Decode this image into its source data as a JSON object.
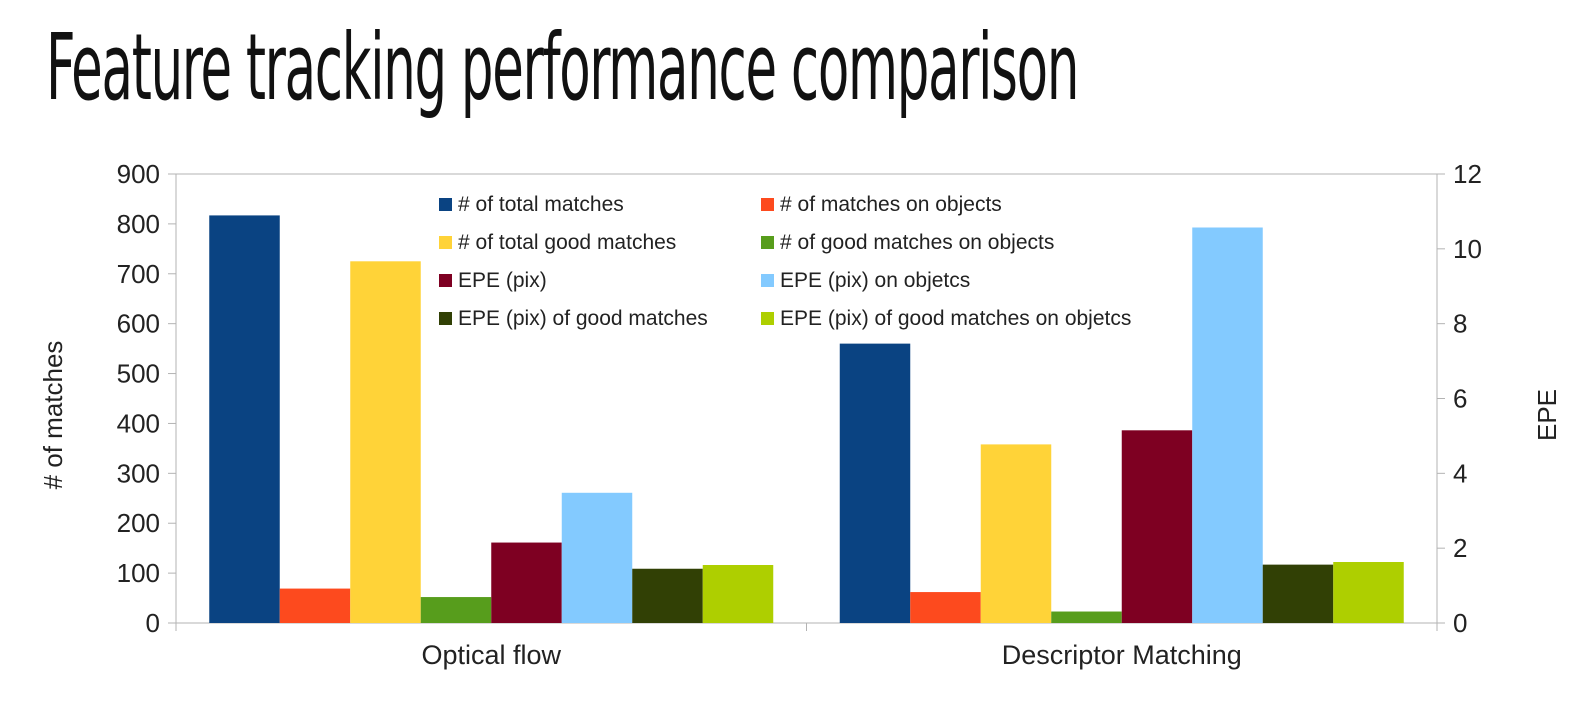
{
  "slide_title": "Feature tracking performance comparison",
  "chart_data": {
    "type": "bar",
    "categories": [
      "Optical flow",
      "Descriptor Matching"
    ],
    "ylabel": "# of matches",
    "ylabel_right": "EPE",
    "ylim": [
      0,
      900
    ],
    "yticks": [
      0,
      100,
      200,
      300,
      400,
      500,
      600,
      700,
      800,
      900
    ],
    "ylim_right": [
      0,
      12
    ],
    "yticks_right": [
      0,
      2,
      4,
      6,
      8,
      10,
      12
    ],
    "legend_position": "top-center",
    "grid": false,
    "series": [
      {
        "name": "# of total matches",
        "axis": "left",
        "color": "#0a4382",
        "values": [
          817,
          560
        ]
      },
      {
        "name": "# of matches on objects",
        "axis": "left",
        "color": "#fd4a1e",
        "values": [
          69,
          62
        ]
      },
      {
        "name": "# of total good matches",
        "axis": "left",
        "color": "#ffd338",
        "values": [
          725,
          358
        ]
      },
      {
        "name": "# of good matches on objects",
        "axis": "left",
        "color": "#579d1c",
        "values": [
          52,
          23
        ]
      },
      {
        "name": "EPE (pix)",
        "axis": "right",
        "color": "#7e0022",
        "values": [
          2.15,
          5.15
        ]
      },
      {
        "name": "EPE (pix) on objetcs",
        "axis": "right",
        "color": "#83caff",
        "values": [
          3.48,
          10.57
        ]
      },
      {
        "name": "EPE (pix) of good matches",
        "axis": "right",
        "color": "#314005",
        "values": [
          1.45,
          1.56
        ]
      },
      {
        "name": "EPE  (pix) of good matches on objetcs",
        "axis": "right",
        "color": "#aecf00",
        "values": [
          1.55,
          1.63
        ]
      }
    ]
  }
}
